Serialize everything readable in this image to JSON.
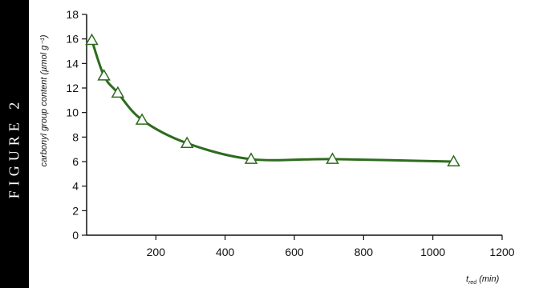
{
  "figure": {
    "label": "FIGURE 2"
  },
  "colors": {
    "line": "#2e6b1e",
    "marker": "#2e6b1e",
    "axis": "#111111",
    "band": "#000000"
  },
  "chart_data": {
    "type": "line",
    "title": "",
    "ylabel": "carbonyl group content (µmol g⁻¹)",
    "xlabel": "t_red (min)",
    "xlabel_main": "t",
    "xlabel_sub": "red",
    "xlabel_unit": "(min)",
    "xlim": [
      0,
      1200
    ],
    "ylim": [
      0,
      18
    ],
    "xticks": [
      200,
      400,
      600,
      800,
      1000,
      1200
    ],
    "yticks": [
      0,
      2,
      4,
      6,
      8,
      10,
      12,
      14,
      16,
      18
    ],
    "grid": false,
    "series": [
      {
        "marker": "open-triangle",
        "x": [
          15,
          50,
          90,
          160,
          290,
          475,
          710,
          1060
        ],
        "y": [
          15.9,
          13.0,
          11.6,
          9.4,
          7.5,
          6.2,
          6.2,
          6.0
        ]
      }
    ]
  }
}
